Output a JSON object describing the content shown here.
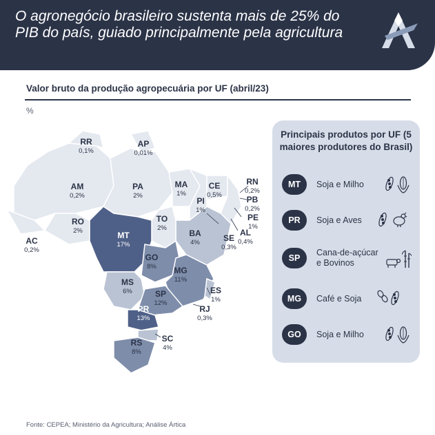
{
  "header": {
    "title": "O agronegócio brasileiro sustenta mais de 25% do PIB do país, guiado principalmente pela agricultura"
  },
  "chart": {
    "subtitle": "Valor bruto da produção agropecuária por UF (abril/23)",
    "unit": "%"
  },
  "states": [
    {
      "uf": "RR",
      "value": "0,1%"
    },
    {
      "uf": "AP",
      "value": "0,01%"
    },
    {
      "uf": "AM",
      "value": "0,2%"
    },
    {
      "uf": "PA",
      "value": "2%"
    },
    {
      "uf": "MA",
      "value": "1%"
    },
    {
      "uf": "CE",
      "value": "0,5%"
    },
    {
      "uf": "RN",
      "value": "0,2%"
    },
    {
      "uf": "PB",
      "value": "0,2%"
    },
    {
      "uf": "PI",
      "value": "1%"
    },
    {
      "uf": "PE",
      "value": "1%"
    },
    {
      "uf": "AL",
      "value": "0,4%"
    },
    {
      "uf": "SE",
      "value": "0,3%"
    },
    {
      "uf": "RO",
      "value": "2%"
    },
    {
      "uf": "AC",
      "value": "0,2%"
    },
    {
      "uf": "TO",
      "value": "2%"
    },
    {
      "uf": "BA",
      "value": "4%"
    },
    {
      "uf": "MT",
      "value": "17%"
    },
    {
      "uf": "GO",
      "value": "8%"
    },
    {
      "uf": "MG",
      "value": "11%"
    },
    {
      "uf": "MS",
      "value": "6%"
    },
    {
      "uf": "SP",
      "value": "12%"
    },
    {
      "uf": "ES",
      "value": "1%"
    },
    {
      "uf": "RJ",
      "value": "0,3%"
    },
    {
      "uf": "PR",
      "value": "13%"
    },
    {
      "uf": "SC",
      "value": "4%"
    },
    {
      "uf": "RS",
      "value": "8%"
    }
  ],
  "panel": {
    "title": "Principais produtos por UF (5 maiores produtores do Brasil)",
    "items": [
      {
        "uf": "MT",
        "product": "Soja e Milho",
        "icons": [
          "soy-icon",
          "corn-icon"
        ]
      },
      {
        "uf": "PR",
        "product": "Soja e Aves",
        "icons": [
          "soy-icon",
          "chicken-icon"
        ]
      },
      {
        "uf": "SP",
        "product": "Cana-de-açúcar e Bovinos",
        "icons": [
          "cow-icon",
          "sugarcane-icon"
        ]
      },
      {
        "uf": "MG",
        "product": "Café e Soja",
        "icons": [
          "coffee-bean-icon",
          "soy-icon"
        ]
      },
      {
        "uf": "GO",
        "product": "Soja e Milho",
        "icons": [
          "soy-icon",
          "corn-icon"
        ]
      }
    ]
  },
  "colors": {
    "header_bg": "#2b3347",
    "panel_bg": "#d6dde8",
    "badge_bg": "#2b3347",
    "shade_low": "#e4e8ef",
    "shade_mid": "#b9c3d3",
    "shade_high": "#7e8daa",
    "shade_top": "#4f6088"
  },
  "footer": {
    "source": "Fonte: CEPEA; Ministério da Agricultura; Análise Ártica"
  }
}
